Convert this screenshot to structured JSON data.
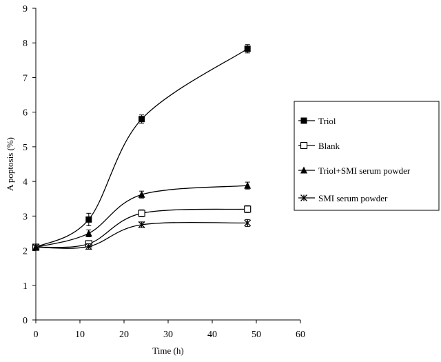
{
  "chart_data": {
    "type": "line",
    "title": "",
    "xlabel": "Time (h)",
    "ylabel": "A poptosis (%)",
    "xlim": [
      0,
      60
    ],
    "ylim": [
      0,
      9
    ],
    "xticks": [
      "0",
      "10",
      "20",
      "30",
      "40",
      "50",
      "60"
    ],
    "yticks": [
      "0",
      "1",
      "2",
      "3",
      "4",
      "5",
      "6",
      "7",
      "8",
      "9"
    ],
    "grid": false,
    "legend_position": "right",
    "x": [
      0,
      12,
      24,
      48
    ],
    "series": [
      {
        "name": "Triol",
        "marker": "filled-square",
        "values": [
          2.1,
          2.9,
          5.8,
          7.83
        ],
        "errors": [
          0.05,
          0.18,
          0.12,
          0.12
        ]
      },
      {
        "name": "Blank",
        "marker": "open-square",
        "values": [
          2.1,
          2.2,
          3.08,
          3.2
        ],
        "errors": [
          0.05,
          0.08,
          0.1,
          0.1
        ]
      },
      {
        "name": "Triol+SMI serum powder",
        "marker": "filled-triangle",
        "values": [
          2.1,
          2.5,
          3.62,
          3.88
        ],
        "errors": [
          0.05,
          0.1,
          0.1,
          0.1
        ]
      },
      {
        "name": "SMI serum powder",
        "marker": "star",
        "values": [
          2.1,
          2.12,
          2.75,
          2.8
        ],
        "errors": [
          0.05,
          0.08,
          0.08,
          0.1
        ]
      }
    ]
  }
}
